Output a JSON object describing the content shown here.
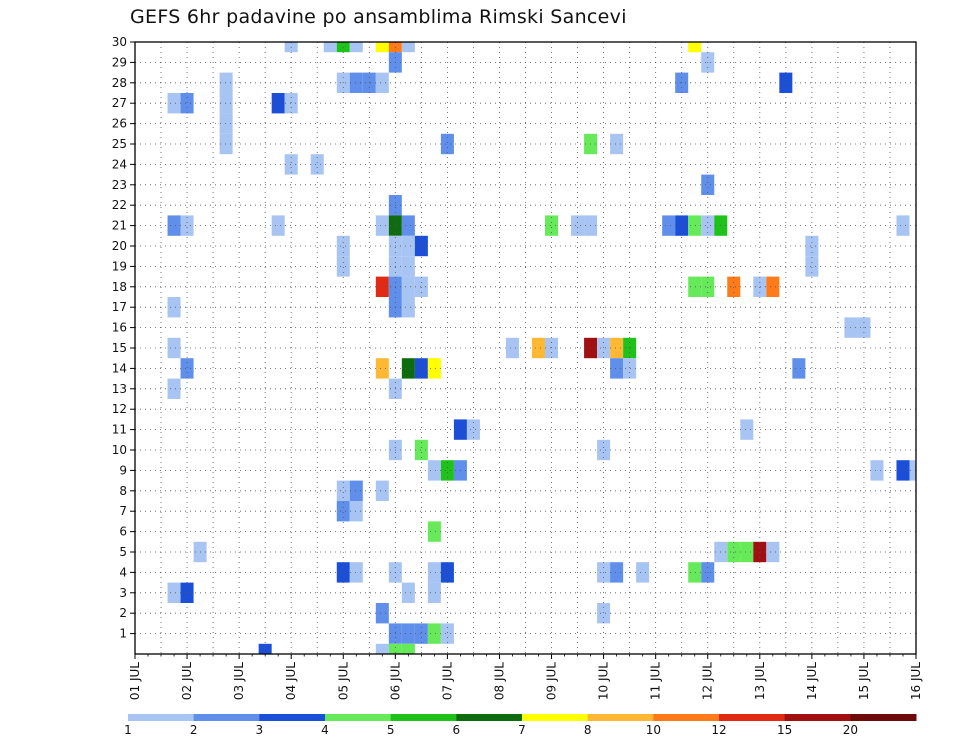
{
  "chart_data": {
    "type": "heatmap",
    "title": "GEFS 6hr padavine po ansamblima Rimski Sancevi",
    "xlabel": "",
    "ylabel": "",
    "x_tick_labels": [
      "01 JUL",
      "02 JUL",
      "03 JUL",
      "04 JUL",
      "05 JUL",
      "06 JUL",
      "07 JUL",
      "08 JUL",
      "09 JUL",
      "10 JUL",
      "11 JUL",
      "12 JUL",
      "13 JUL",
      "14 JUL",
      "15 JUL",
      "16 JUL"
    ],
    "y_tick_labels": [
      "1",
      "2",
      "3",
      "4",
      "5",
      "6",
      "7",
      "8",
      "9",
      "10",
      "11",
      "12",
      "13",
      "14",
      "15",
      "16",
      "17",
      "18",
      "19",
      "20",
      "21",
      "22",
      "23",
      "24",
      "25",
      "26",
      "27",
      "28",
      "29",
      "30"
    ],
    "x_range_days": [
      1,
      16
    ],
    "y_range": [
      0,
      30
    ],
    "step_hours": 6,
    "grid": true,
    "legend_placement": "bottom",
    "legend": {
      "labels": [
        "1",
        "2",
        "3",
        "4",
        "5",
        "6",
        "7",
        "8",
        "10",
        "12",
        "15",
        "20"
      ],
      "colors": [
        "#a8c4f2",
        "#5f8fea",
        "#1c4fd8",
        "#66ea5a",
        "#1fc21b",
        "#0e6b0e",
        "#ffff00",
        "#ffb833",
        "#ff7a18",
        "#e02a14",
        "#a01010",
        "#6e0a0a"
      ]
    },
    "cells": [
      {
        "m": 30,
        "d": 4.0,
        "v": 1
      },
      {
        "m": 30,
        "d": 4.75,
        "v": 1
      },
      {
        "m": 30,
        "d": 5.0,
        "v": 5
      },
      {
        "m": 30,
        "d": 5.25,
        "v": 1
      },
      {
        "m": 30,
        "d": 5.75,
        "v": 7
      },
      {
        "m": 30,
        "d": 6.0,
        "v": 10
      },
      {
        "m": 30,
        "d": 6.25,
        "v": 1
      },
      {
        "m": 30,
        "d": 11.75,
        "v": 7
      },
      {
        "m": 29,
        "d": 6.0,
        "v": 2
      },
      {
        "m": 29,
        "d": 12.0,
        "v": 1
      },
      {
        "m": 28,
        "d": 5.0,
        "v": 1
      },
      {
        "m": 28,
        "d": 5.25,
        "v": 2
      },
      {
        "m": 28,
        "d": 5.5,
        "v": 2
      },
      {
        "m": 28,
        "d": 5.75,
        "v": 1
      },
      {
        "m": 28,
        "d": 2.75,
        "v": 1
      },
      {
        "m": 28,
        "d": 11.5,
        "v": 2
      },
      {
        "m": 28,
        "d": 13.5,
        "v": 3
      },
      {
        "m": 27,
        "d": 1.75,
        "v": 1
      },
      {
        "m": 27,
        "d": 2.0,
        "v": 2
      },
      {
        "m": 27,
        "d": 2.75,
        "v": 1
      },
      {
        "m": 27,
        "d": 3.75,
        "v": 3
      },
      {
        "m": 27,
        "d": 4.0,
        "v": 1
      },
      {
        "m": 26,
        "d": 2.75,
        "v": 1
      },
      {
        "m": 25,
        "d": 2.75,
        "v": 1
      },
      {
        "m": 25,
        "d": 7.0,
        "v": 2
      },
      {
        "m": 25,
        "d": 9.75,
        "v": 4
      },
      {
        "m": 25,
        "d": 10.25,
        "v": 1
      },
      {
        "m": 24,
        "d": 4.0,
        "v": 1
      },
      {
        "m": 24,
        "d": 4.5,
        "v": 1
      },
      {
        "m": 23,
        "d": 12.0,
        "v": 2
      },
      {
        "m": 22,
        "d": 6.0,
        "v": 2
      },
      {
        "m": 21,
        "d": 1.75,
        "v": 2
      },
      {
        "m": 21,
        "d": 2.0,
        "v": 1
      },
      {
        "m": 21,
        "d": 3.75,
        "v": 1
      },
      {
        "m": 21,
        "d": 5.75,
        "v": 1
      },
      {
        "m": 21,
        "d": 6.0,
        "v": 6
      },
      {
        "m": 21,
        "d": 6.25,
        "v": 2
      },
      {
        "m": 21,
        "d": 9.0,
        "v": 4
      },
      {
        "m": 21,
        "d": 9.5,
        "v": 1
      },
      {
        "m": 21,
        "d": 9.75,
        "v": 1
      },
      {
        "m": 21,
        "d": 11.25,
        "v": 2
      },
      {
        "m": 21,
        "d": 11.5,
        "v": 3
      },
      {
        "m": 21,
        "d": 11.75,
        "v": 4
      },
      {
        "m": 21,
        "d": 12.0,
        "v": 1
      },
      {
        "m": 21,
        "d": 12.25,
        "v": 5
      },
      {
        "m": 21,
        "d": 15.75,
        "v": 1
      },
      {
        "m": 20,
        "d": 5.0,
        "v": 1
      },
      {
        "m": 20,
        "d": 6.0,
        "v": 1
      },
      {
        "m": 20,
        "d": 6.25,
        "v": 1
      },
      {
        "m": 20,
        "d": 6.5,
        "v": 3
      },
      {
        "m": 20,
        "d": 14.0,
        "v": 1
      },
      {
        "m": 19,
        "d": 5.0,
        "v": 1
      },
      {
        "m": 19,
        "d": 6.0,
        "v": 1
      },
      {
        "m": 19,
        "d": 6.25,
        "v": 1
      },
      {
        "m": 19,
        "d": 14.0,
        "v": 1
      },
      {
        "m": 18,
        "d": 5.75,
        "v": 12
      },
      {
        "m": 18,
        "d": 6.0,
        "v": 2
      },
      {
        "m": 18,
        "d": 6.25,
        "v": 1
      },
      {
        "m": 18,
        "d": 6.5,
        "v": 1
      },
      {
        "m": 18,
        "d": 11.75,
        "v": 4
      },
      {
        "m": 18,
        "d": 12.0,
        "v": 4
      },
      {
        "m": 18,
        "d": 12.5,
        "v": 10
      },
      {
        "m": 18,
        "d": 13.0,
        "v": 1
      },
      {
        "m": 18,
        "d": 13.25,
        "v": 10
      },
      {
        "m": 17,
        "d": 1.75,
        "v": 1
      },
      {
        "m": 17,
        "d": 6.0,
        "v": 2
      },
      {
        "m": 17,
        "d": 6.25,
        "v": 1
      },
      {
        "m": 16,
        "d": 14.75,
        "v": 1
      },
      {
        "m": 16,
        "d": 15.0,
        "v": 1
      },
      {
        "m": 15,
        "d": 1.75,
        "v": 1
      },
      {
        "m": 15,
        "d": 8.25,
        "v": 1
      },
      {
        "m": 15,
        "d": 8.75,
        "v": 8
      },
      {
        "m": 15,
        "d": 9.0,
        "v": 1
      },
      {
        "m": 15,
        "d": 9.75,
        "v": 15
      },
      {
        "m": 15,
        "d": 10.0,
        "v": 1
      },
      {
        "m": 15,
        "d": 10.25,
        "v": 8
      },
      {
        "m": 15,
        "d": 10.5,
        "v": 5
      },
      {
        "m": 14,
        "d": 2.0,
        "v": 2
      },
      {
        "m": 14,
        "d": 5.75,
        "v": 8
      },
      {
        "m": 14,
        "d": 6.25,
        "v": 6
      },
      {
        "m": 14,
        "d": 6.5,
        "v": 3
      },
      {
        "m": 14,
        "d": 6.75,
        "v": 7
      },
      {
        "m": 14,
        "d": 10.25,
        "v": 2
      },
      {
        "m": 14,
        "d": 10.5,
        "v": 1
      },
      {
        "m": 14,
        "d": 13.75,
        "v": 2
      },
      {
        "m": 13,
        "d": 1.75,
        "v": 1
      },
      {
        "m": 13,
        "d": 6.0,
        "v": 1
      },
      {
        "m": 11,
        "d": 7.25,
        "v": 3
      },
      {
        "m": 11,
        "d": 7.5,
        "v": 1
      },
      {
        "m": 11,
        "d": 12.75,
        "v": 1
      },
      {
        "m": 10,
        "d": 6.0,
        "v": 1
      },
      {
        "m": 10,
        "d": 6.5,
        "v": 4
      },
      {
        "m": 10,
        "d": 10.0,
        "v": 1
      },
      {
        "m": 9,
        "d": 6.75,
        "v": 1
      },
      {
        "m": 9,
        "d": 7.0,
        "v": 5
      },
      {
        "m": 9,
        "d": 7.25,
        "v": 2
      },
      {
        "m": 9,
        "d": 15.25,
        "v": 1
      },
      {
        "m": 9,
        "d": 15.75,
        "v": 3
      },
      {
        "m": 9,
        "d": 16.0,
        "v": 1
      },
      {
        "m": 8,
        "d": 5.0,
        "v": 1
      },
      {
        "m": 8,
        "d": 5.25,
        "v": 2
      },
      {
        "m": 8,
        "d": 5.75,
        "v": 1
      },
      {
        "m": 7,
        "d": 5.0,
        "v": 2
      },
      {
        "m": 7,
        "d": 5.25,
        "v": 1
      },
      {
        "m": 6,
        "d": 6.75,
        "v": 4
      },
      {
        "m": 5,
        "d": 2.25,
        "v": 1
      },
      {
        "m": 5,
        "d": 12.25,
        "v": 1
      },
      {
        "m": 5,
        "d": 12.5,
        "v": 4
      },
      {
        "m": 5,
        "d": 12.75,
        "v": 4
      },
      {
        "m": 5,
        "d": 13.0,
        "v": 15
      },
      {
        "m": 5,
        "d": 13.25,
        "v": 1
      },
      {
        "m": 4,
        "d": 5.0,
        "v": 3
      },
      {
        "m": 4,
        "d": 5.25,
        "v": 1
      },
      {
        "m": 4,
        "d": 6.0,
        "v": 1
      },
      {
        "m": 4,
        "d": 6.75,
        "v": 1
      },
      {
        "m": 4,
        "d": 7.0,
        "v": 3
      },
      {
        "m": 4,
        "d": 10.0,
        "v": 1
      },
      {
        "m": 4,
        "d": 10.25,
        "v": 2
      },
      {
        "m": 4,
        "d": 10.75,
        "v": 1
      },
      {
        "m": 4,
        "d": 11.75,
        "v": 4
      },
      {
        "m": 4,
        "d": 12.0,
        "v": 2
      },
      {
        "m": 3,
        "d": 1.75,
        "v": 1
      },
      {
        "m": 3,
        "d": 2.0,
        "v": 3
      },
      {
        "m": 3,
        "d": 6.25,
        "v": 1
      },
      {
        "m": 3,
        "d": 6.75,
        "v": 1
      },
      {
        "m": 2,
        "d": 5.75,
        "v": 2
      },
      {
        "m": 2,
        "d": 10.0,
        "v": 1
      },
      {
        "m": 1,
        "d": 6.0,
        "v": 2
      },
      {
        "m": 1,
        "d": 6.25,
        "v": 2
      },
      {
        "m": 1,
        "d": 6.5,
        "v": 2
      },
      {
        "m": 1,
        "d": 6.75,
        "v": 4
      },
      {
        "m": 1,
        "d": 7.0,
        "v": 1
      },
      {
        "m": 0,
        "d": 3.5,
        "v": 3
      },
      {
        "m": 0,
        "d": 5.75,
        "v": 1
      },
      {
        "m": 0,
        "d": 6.0,
        "v": 4
      },
      {
        "m": 0,
        "d": 6.25,
        "v": 4
      }
    ]
  }
}
